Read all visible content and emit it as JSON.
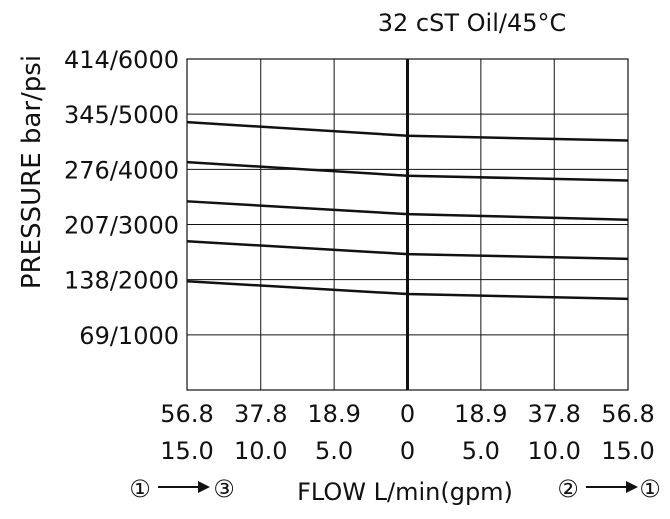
{
  "chart_data": {
    "type": "line",
    "title": "32 cST Oil/45°C",
    "ylabel": "PRESSURE bar/psi",
    "xlabel": "FLOW L/min(gpm)",
    "y_ticks": [
      {
        "value": 69,
        "label": "69/1000"
      },
      {
        "value": 138,
        "label": "138/2000"
      },
      {
        "value": 207,
        "label": "207/3000"
      },
      {
        "value": 276,
        "label": "276/4000"
      },
      {
        "value": 345,
        "label": "345/5000"
      },
      {
        "value": 414,
        "label": "414/6000"
      }
    ],
    "x_ticks": [
      {
        "value": -56.8,
        "lpm": "56.8",
        "gpm": "15.0"
      },
      {
        "value": -37.8,
        "lpm": "37.8",
        "gpm": "10.0"
      },
      {
        "value": -18.9,
        "lpm": "18.9",
        "gpm": "5.0"
      },
      {
        "value": 0,
        "lpm": "0",
        "gpm": "0"
      },
      {
        "value": 18.9,
        "lpm": "18.9",
        "gpm": "5.0"
      },
      {
        "value": 37.8,
        "lpm": "37.8",
        "gpm": "10.0"
      },
      {
        "value": 56.8,
        "lpm": "56.8",
        "gpm": "15.0"
      }
    ],
    "xlim": [
      -56.8,
      56.8
    ],
    "ylim": [
      0,
      414
    ],
    "grid": true,
    "direction_left": {
      "from": "①",
      "to": "③"
    },
    "direction_right": {
      "from": "②",
      "to": "①"
    },
    "series": [
      {
        "x": [
          -56.8,
          0,
          56.8
        ],
        "values": [
          335,
          318,
          312
        ]
      },
      {
        "x": [
          -56.8,
          0,
          56.8
        ],
        "values": [
          285,
          268,
          262
        ]
      },
      {
        "x": [
          -56.8,
          0,
          56.8
        ],
        "values": [
          236,
          220,
          213
        ]
      },
      {
        "x": [
          -56.8,
          0,
          56.8
        ],
        "values": [
          186,
          170,
          164
        ]
      },
      {
        "x": [
          -56.8,
          0,
          56.8
        ],
        "values": [
          136,
          120,
          114
        ]
      }
    ]
  }
}
